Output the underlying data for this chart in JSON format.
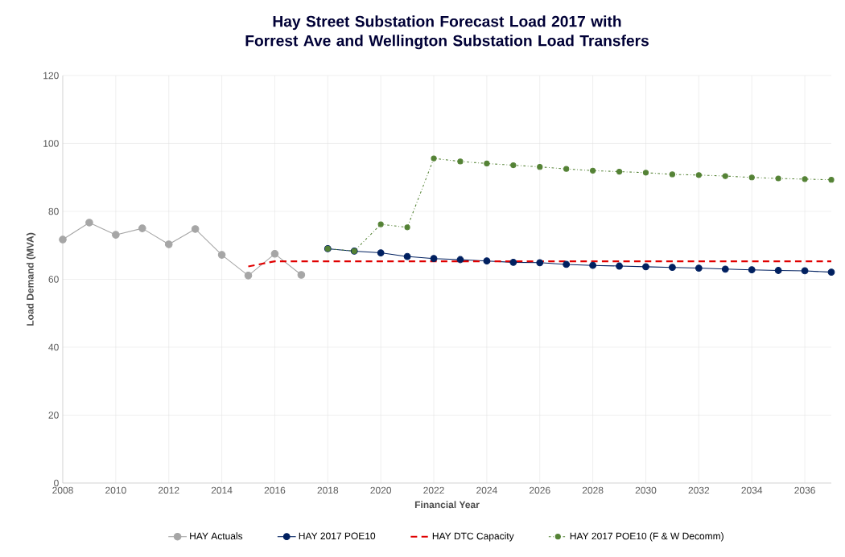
{
  "chart_data": {
    "type": "line",
    "title": "Hay Street Substation Forecast Load 2017 with Forrest Ave and Wellington Substation Load Transfers",
    "xlabel": "Financial Year",
    "ylabel": "Load Demand (MVA)",
    "xlim": [
      2008,
      2037
    ],
    "ylim": [
      0,
      120
    ],
    "xticks": [
      2008,
      2010,
      2012,
      2014,
      2016,
      2018,
      2020,
      2022,
      2024,
      2026,
      2028,
      2030,
      2032,
      2034,
      2036
    ],
    "yticks": [
      0,
      20,
      40,
      60,
      80,
      100,
      120
    ],
    "grid": true,
    "legend": "bottom",
    "series": [
      {
        "name": "HAY Actuals",
        "color": "#a6a6a6",
        "marker": "circle",
        "line_style": "solid",
        "x": [
          2008,
          2009,
          2010,
          2011,
          2012,
          2013,
          2014,
          2015,
          2016,
          2017
        ],
        "values": [
          71.7,
          76.7,
          73.1,
          75.0,
          70.3,
          74.8,
          67.2,
          61.1,
          67.5,
          61.3
        ]
      },
      {
        "name": "HAY 2017 POE10",
        "color": "#002060",
        "marker": "circle",
        "line_style": "solid",
        "x": [
          2018,
          2019,
          2020,
          2021,
          2022,
          2023,
          2024,
          2025,
          2026,
          2027,
          2028,
          2029,
          2030,
          2031,
          2032,
          2033,
          2034,
          2035,
          2036,
          2037
        ],
        "values": [
          69.0,
          68.3,
          67.8,
          66.7,
          66.1,
          65.8,
          65.4,
          65.0,
          64.9,
          64.4,
          64.1,
          63.9,
          63.7,
          63.5,
          63.3,
          63.0,
          62.8,
          62.6,
          62.5,
          62.1
        ]
      },
      {
        "name": "HAY DTC Capacity",
        "color": "#e00000",
        "marker": "none",
        "line_style": "dashed",
        "x": [
          2015,
          2016,
          2017,
          2018,
          2019,
          2020,
          2021,
          2022,
          2023,
          2024,
          2025,
          2026,
          2027,
          2028,
          2029,
          2030,
          2031,
          2032,
          2033,
          2034,
          2035,
          2036,
          2037
        ],
        "values": [
          63.8,
          65.3,
          65.3,
          65.3,
          65.3,
          65.3,
          65.3,
          65.3,
          65.3,
          65.3,
          65.3,
          65.3,
          65.3,
          65.3,
          65.3,
          65.3,
          65.3,
          65.3,
          65.3,
          65.3,
          65.3,
          65.3,
          65.3
        ]
      },
      {
        "name": "HAY 2017 POE10 (F & W Decomm)",
        "color": "#548235",
        "marker": "circle",
        "line_style": "dotted",
        "x": [
          2018,
          2019,
          2020,
          2021,
          2022,
          2023,
          2024,
          2025,
          2026,
          2027,
          2028,
          2029,
          2030,
          2031,
          2032,
          2033,
          2034,
          2035,
          2036,
          2037
        ],
        "values": [
          69.0,
          68.3,
          76.2,
          75.3,
          95.6,
          94.7,
          94.1,
          93.6,
          93.1,
          92.5,
          92.0,
          91.7,
          91.4,
          90.9,
          90.7,
          90.4,
          90.0,
          89.7,
          89.5,
          89.3
        ]
      }
    ]
  }
}
